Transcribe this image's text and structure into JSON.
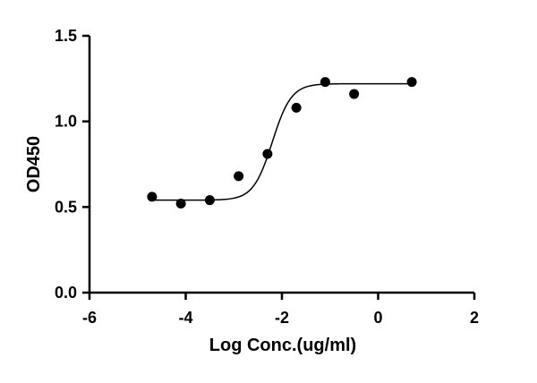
{
  "chart_data": {
    "type": "scatter",
    "title": "",
    "xlabel": "Log Conc.(ug/ml)",
    "ylabel": "OD450",
    "xlim": [
      -6,
      2
    ],
    "ylim": [
      0.0,
      1.5
    ],
    "x_ticks": [
      -6,
      -4,
      -2,
      0,
      2
    ],
    "x_tick_labels": [
      "-6",
      "-4",
      "-2",
      "0",
      "2"
    ],
    "y_ticks": [
      0.0,
      0.5,
      1.0,
      1.5
    ],
    "y_tick_labels": [
      "0.0",
      "0.5",
      "1.0",
      "1.5"
    ],
    "grid": false,
    "legend": "none",
    "series": [
      {
        "points": [
          {
            "x": -4.7,
            "y": 0.56
          },
          {
            "x": -4.1,
            "y": 0.52
          },
          {
            "x": -3.5,
            "y": 0.54
          },
          {
            "x": -2.9,
            "y": 0.68
          },
          {
            "x": -2.3,
            "y": 0.81
          },
          {
            "x": -1.7,
            "y": 1.08
          },
          {
            "x": -1.1,
            "y": 1.23
          },
          {
            "x": -0.5,
            "y": 1.16
          },
          {
            "x": 0.7,
            "y": 1.23
          }
        ],
        "marker_color": "#000000"
      }
    ],
    "fit_curve": {
      "model": "4PL sigmoid",
      "x_range": [
        -4.7,
        0.7
      ],
      "bottom": 0.54,
      "top": 1.22,
      "log_ec50": -2.2,
      "hill_slope": 1.0,
      "color": "#000000"
    }
  }
}
